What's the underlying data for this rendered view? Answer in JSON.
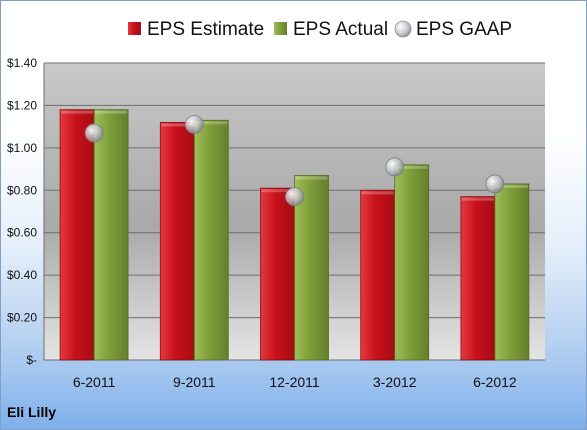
{
  "company_label": "Eli Lilly",
  "chart_data": {
    "type": "bar",
    "categories": [
      "6-2011",
      "9-2011",
      "12-2011",
      "3-2012",
      "6-2012"
    ],
    "series": [
      {
        "name": "EPS Estimate",
        "kind": "bar",
        "color": "#c0141c",
        "values": [
          1.18,
          1.12,
          0.81,
          0.8,
          0.77
        ]
      },
      {
        "name": "EPS Actual",
        "kind": "bar",
        "color": "#7f9e3a",
        "values": [
          1.18,
          1.13,
          0.87,
          0.92,
          0.83
        ]
      },
      {
        "name": "EPS GAAP",
        "kind": "scatter",
        "color": "#b8bcc4",
        "values": [
          1.07,
          1.11,
          0.77,
          0.91,
          0.83
        ]
      }
    ],
    "ylim": [
      0,
      1.4
    ],
    "yticks": [
      0,
      0.2,
      0.4,
      0.6,
      0.8,
      1.0,
      1.2,
      1.4
    ],
    "ytick_labels": [
      "$-",
      "$0.20",
      "$0.40",
      "$0.60",
      "$0.80",
      "$1.00",
      "$1.20",
      "$1.40"
    ],
    "grid": true,
    "legend_position": "top"
  }
}
